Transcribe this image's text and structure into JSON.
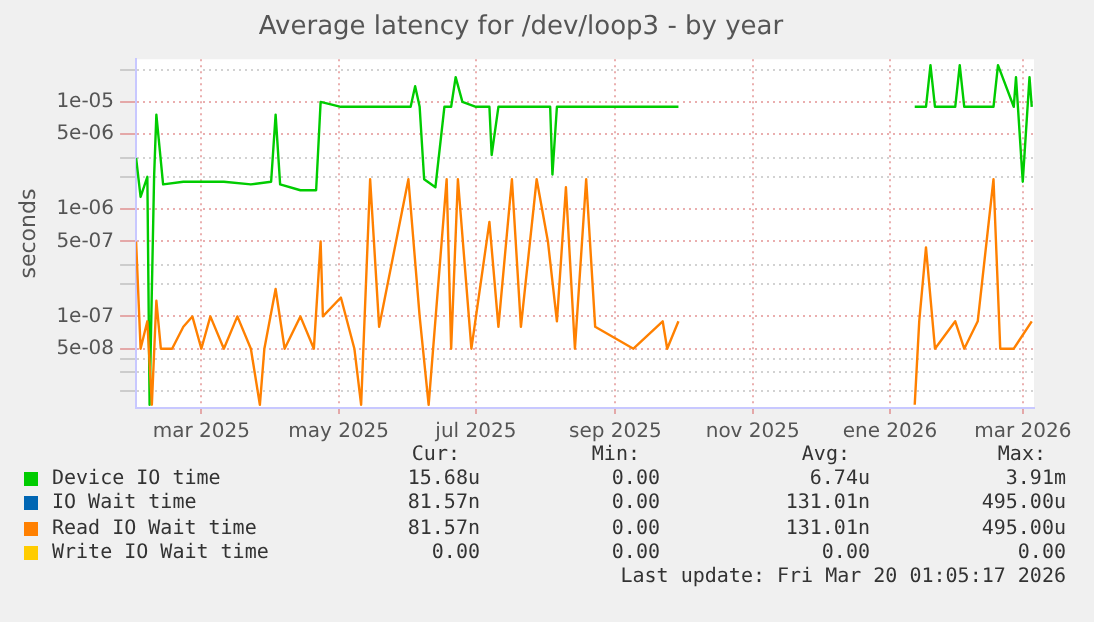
{
  "chart_data": {
    "type": "line",
    "title": "Average latency for /dev/loop3 - by year",
    "ylabel": "seconds",
    "log": "y",
    "grid": true,
    "legend": "bottom",
    "marker": "none",
    "line_style": "solid",
    "xlim": [
      "2025-01-31",
      "2026-03-06"
    ],
    "xticks": [
      {
        "value": "2025-03-01",
        "label": "mar 2025"
      },
      {
        "value": "2025-05-01",
        "label": "may 2025"
      },
      {
        "value": "2025-07-01",
        "label": "jul 2025"
      },
      {
        "value": "2025-09-01",
        "label": "sep 2025"
      },
      {
        "value": "2025-11-01",
        "label": "nov 2025"
      },
      {
        "value": "2026-01-01",
        "label": "ene 2026"
      },
      {
        "value": "2026-03-01",
        "label": "mar 2026"
      }
    ],
    "ylim": [
      1.4e-08,
      2.5e-05
    ],
    "yticks": [
      {
        "value": 2e-08,
        "label": null
      },
      {
        "value": 3e-08,
        "label": null
      },
      {
        "value": 4e-08,
        "label": null
      },
      {
        "value": 5e-08,
        "label": "5e-08"
      },
      {
        "value": 1e-07,
        "label": "1e-07"
      },
      {
        "value": 2e-07,
        "label": null
      },
      {
        "value": 3e-07,
        "label": null
      },
      {
        "value": 5e-07,
        "label": "5e-07"
      },
      {
        "value": 1e-06,
        "label": "1e-06"
      },
      {
        "value": 2e-06,
        "label": null
      },
      {
        "value": 3e-06,
        "label": null
      },
      {
        "value": 5e-06,
        "label": "5e-06"
      },
      {
        "value": 1e-05,
        "label": "1e-05"
      },
      {
        "value": 2e-05,
        "label": null
      }
    ],
    "series": [
      {
        "name": "Device IO time",
        "color": "#00cc00",
        "x": [
          "2025-01-31",
          "2025-02-02",
          "2025-02-05",
          "2025-02-06",
          "2025-02-08",
          "2025-02-09",
          "2025-02-12",
          "2025-02-21",
          "2025-03-01",
          "2025-03-11",
          "2025-03-23",
          "2025-04-01",
          "2025-04-03",
          "2025-04-05",
          "2025-04-14",
          "2025-04-21",
          "2025-04-23",
          "2025-05-02",
          "2025-05-19",
          "2025-06-02",
          "2025-06-04",
          "2025-06-06",
          "2025-06-08",
          "2025-06-13",
          "2025-06-17",
          "2025-06-20",
          "2025-06-22",
          "2025-06-25",
          "2025-07-01",
          "2025-07-07",
          "2025-07-08",
          "2025-07-11",
          "2025-07-28",
          "2025-08-03",
          "2025-08-04",
          "2025-08-06",
          "2025-09-01",
          "2025-09-29",
          "2025-11-15",
          "2026-01-12",
          "2026-01-17",
          "2026-01-19",
          "2026-01-21",
          "2026-01-30",
          "2026-02-01",
          "2026-02-03",
          "2026-02-16",
          "2026-02-18",
          "2026-02-25",
          "2026-02-26",
          "2026-03-01",
          "2026-03-04",
          "2026-03-05"
        ],
        "values": [
          3e-06,
          1.3e-06,
          2e-06,
          1.5e-08,
          2e-06,
          7.6e-06,
          1.7e-06,
          1.8e-06,
          1.8e-06,
          1.8e-06,
          1.7e-06,
          1.8e-06,
          7.6e-06,
          1.7e-06,
          1.5e-06,
          1.5e-06,
          1e-05,
          9e-06,
          9e-06,
          9e-06,
          1.4e-05,
          9e-06,
          1.9e-06,
          1.6e-06,
          9e-06,
          9e-06,
          1.7e-05,
          1e-05,
          9e-06,
          9e-06,
          3.2e-06,
          9e-06,
          9e-06,
          9e-06,
          2.1e-06,
          9e-06,
          9e-06,
          9e-06,
          null,
          9e-06,
          9e-06,
          2.2e-05,
          9e-06,
          9e-06,
          2.2e-05,
          9e-06,
          9e-06,
          2.2e-05,
          9e-06,
          1.7e-05,
          1.8e-06,
          1.7e-05,
          9e-06
        ]
      },
      {
        "name": "IO Wait time",
        "color": "#0066b3"
      },
      {
        "name": "Read IO Wait time",
        "color": "#ff8000",
        "x": [
          "2025-01-31",
          "2025-02-02",
          "2025-02-05",
          "2025-02-07",
          "2025-02-09",
          "2025-02-11",
          "2025-02-16",
          "2025-02-21",
          "2025-02-25",
          "2025-03-01",
          "2025-03-05",
          "2025-03-11",
          "2025-03-17",
          "2025-03-23",
          "2025-03-27",
          "2025-03-29",
          "2025-04-03",
          "2025-04-07",
          "2025-04-14",
          "2025-04-20",
          "2025-04-23",
          "2025-04-24",
          "2025-05-02",
          "2025-05-08",
          "2025-05-11",
          "2025-05-15",
          "2025-05-19",
          "2025-06-01",
          "2025-06-06",
          "2025-06-10",
          "2025-06-18",
          "2025-06-20",
          "2025-06-23",
          "2025-06-29",
          "2025-07-07",
          "2025-07-11",
          "2025-07-17",
          "2025-07-21",
          "2025-07-28",
          "2025-08-02",
          "2025-08-06",
          "2025-08-10",
          "2025-08-14",
          "2025-08-19",
          "2025-08-23",
          "2025-09-09",
          "2025-09-22",
          "2025-09-24",
          "2025-09-29",
          "2025-11-15",
          "2026-01-12",
          "2026-01-14",
          "2026-01-17",
          "2026-01-21",
          "2026-01-30",
          "2026-02-03",
          "2026-02-09",
          "2026-02-16",
          "2026-02-19",
          "2026-02-25",
          "2026-03-05"
        ],
        "values": [
          5e-07,
          5e-08,
          9e-08,
          1.5e-08,
          1.4e-07,
          5e-08,
          5e-08,
          8e-08,
          1e-07,
          5e-08,
          1e-07,
          5e-08,
          1e-07,
          5e-08,
          1.5e-08,
          5e-08,
          1.8e-07,
          5e-08,
          1e-07,
          5e-08,
          5e-07,
          1e-07,
          1.5e-07,
          5e-08,
          1.5e-08,
          1.9e-06,
          8e-08,
          1.9e-06,
          1e-07,
          1.5e-08,
          1.9e-06,
          5e-08,
          1.9e-06,
          5e-08,
          7.6e-07,
          8e-08,
          1.9e-06,
          8e-08,
          1.9e-06,
          5e-07,
          9e-08,
          1.6e-06,
          5e-08,
          1.9e-06,
          8e-08,
          5e-08,
          9e-08,
          5e-08,
          9e-08,
          null,
          1.5e-08,
          9e-08,
          4.4e-07,
          5e-08,
          9e-08,
          5e-08,
          9e-08,
          1.9e-06,
          5e-08,
          5e-08,
          9e-08
        ]
      },
      {
        "name": "Write IO Wait time",
        "color": "#ffcc00"
      }
    ],
    "annotations": [
      "Cur:",
      "Min:",
      "Avg:",
      "Max:",
      "15.68u",
      "0.00",
      "6.74u",
      "3.91m",
      "81.57n",
      "0.00",
      "131.01n",
      "495.00u",
      "81.57n",
      "0.00",
      "131.01n",
      "495.00u",
      "0.00",
      "0.00",
      "0.00",
      "0.00",
      "Last update: Fri Mar 20 01:05:17 2026"
    ]
  }
}
